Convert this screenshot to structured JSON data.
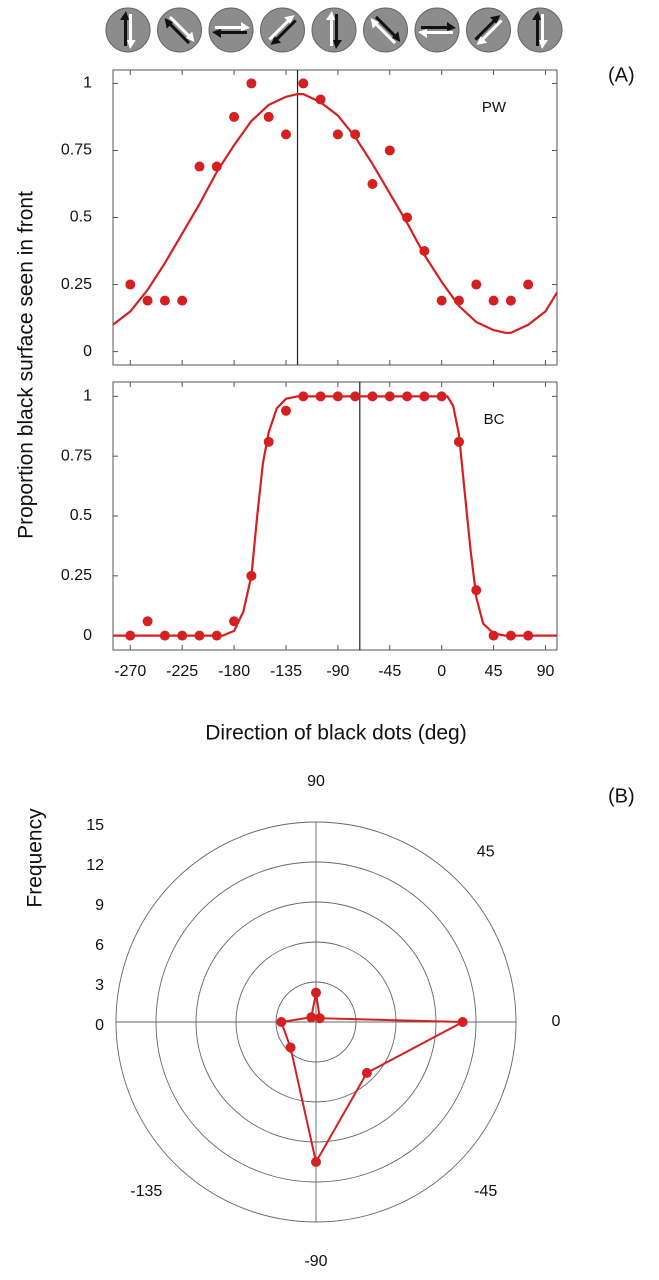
{
  "chart_data": [
    {
      "type": "scatter",
      "panel": "(A)",
      "annotation": "PW",
      "ylabel": "Proportion black surface seen in front",
      "x": [
        -270,
        -255,
        -240,
        -225,
        -210,
        -195,
        -180,
        -165,
        -150,
        -135,
        -120,
        -105,
        -90,
        -75,
        -60,
        -45,
        -30,
        -15,
        0,
        15,
        30,
        45,
        60,
        75
      ],
      "values": [
        0.25,
        0.19,
        0.19,
        0.19,
        0.69,
        0.69,
        0.875,
        1,
        0.875,
        0.81,
        1,
        0.94,
        0.81,
        0.81,
        0.625,
        0.75,
        0.5,
        0.375,
        0.19,
        0.19,
        0.25,
        0.19,
        0.19,
        0.25
      ],
      "fit": {
        "x": [
          -285,
          -270,
          -255,
          -240,
          -225,
          -210,
          -195,
          -180,
          -165,
          -150,
          -135,
          -125,
          -120,
          -105,
          -90,
          -75,
          -60,
          -45,
          -30,
          -15,
          0,
          15,
          30,
          45,
          55,
          60,
          75,
          90,
          100
        ],
        "values": [
          0.1,
          0.15,
          0.23,
          0.33,
          0.44,
          0.55,
          0.67,
          0.77,
          0.86,
          0.92,
          0.95,
          0.96,
          0.96,
          0.93,
          0.88,
          0.8,
          0.7,
          0.59,
          0.48,
          0.36,
          0.26,
          0.17,
          0.11,
          0.08,
          0.07,
          0.07,
          0.1,
          0.15,
          0.22
        ]
      },
      "vline": -125,
      "color": "#d42020",
      "xlim": [
        -285,
        100
      ],
      "ylim": [
        -0.05,
        1.05
      ],
      "xticks": [
        -270,
        -225,
        -180,
        -135,
        -90,
        -45,
        0,
        45,
        90
      ],
      "yticks": [
        0,
        0.25,
        0.5,
        0.75,
        1
      ]
    },
    {
      "type": "scatter",
      "annotation": "BC",
      "xlabel": "Direction of black dots (deg)",
      "x": [
        -270,
        -255,
        -240,
        -225,
        -210,
        -195,
        -180,
        -165,
        -150,
        -135,
        -120,
        -105,
        -90,
        -75,
        -60,
        -45,
        -30,
        -15,
        0,
        15,
        30,
        45,
        60,
        75
      ],
      "values": [
        0,
        0.06,
        0,
        0,
        0,
        0,
        0.06,
        0.25,
        0.81,
        0.94,
        1,
        1,
        1,
        1,
        1,
        1,
        1,
        1,
        1,
        0.81,
        0.19,
        0,
        0,
        0
      ],
      "fit": {
        "x": [
          -285,
          -190,
          -180,
          -172,
          -165,
          -160,
          -155,
          -150,
          -143,
          -135,
          -125,
          5,
          10,
          15,
          20,
          25,
          30,
          36,
          45,
          55,
          100
        ],
        "values": [
          0,
          0,
          0.02,
          0.1,
          0.25,
          0.5,
          0.72,
          0.85,
          0.95,
          0.99,
          1,
          1,
          0.96,
          0.84,
          0.6,
          0.36,
          0.16,
          0.05,
          0.01,
          0,
          0
        ]
      },
      "vline": -71,
      "color": "#d42020",
      "xlim": [
        -285,
        100
      ],
      "ylim": [
        -0.06,
        1.06
      ],
      "xticks": [
        -270,
        -225,
        -180,
        -135,
        -90,
        -45,
        0,
        45,
        90
      ],
      "yticks": [
        0,
        0.25,
        0.5,
        0.75,
        1
      ]
    },
    {
      "type": "polar",
      "panel": "(B)",
      "ylabel": "Frequency",
      "theta": [
        0,
        45,
        90,
        135,
        180,
        -135,
        -90,
        -45
      ],
      "values": [
        11,
        0.4,
        2.2,
        0.5,
        2.6,
        2.7,
        10.5,
        5.4
      ],
      "color": "#d42020",
      "rlim": [
        0,
        15
      ],
      "rticks": [
        0,
        3,
        6,
        9,
        12,
        15
      ],
      "thetaticks": [
        90,
        45,
        0,
        -45,
        -90,
        -135
      ]
    }
  ]
}
